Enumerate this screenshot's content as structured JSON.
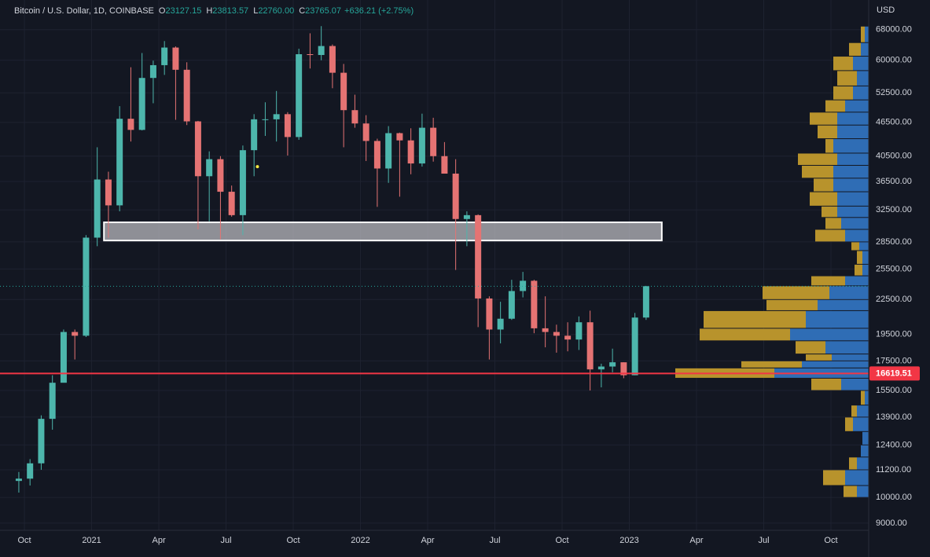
{
  "chart_data": {
    "type": "candlestick",
    "header": {
      "symbol": "Bitcoin / U.S. Dollar, 1D, COINBASE",
      "ohlc": [
        {
          "key": "O",
          "value": "23127.15"
        },
        {
          "key": "H",
          "value": "23813.57"
        },
        {
          "key": "L",
          "value": "22760.00"
        },
        {
          "key": "C",
          "value": "23765.07"
        }
      ],
      "change": "+636.21 (+2.75%)"
    },
    "currency": "USD",
    "up_color": "#4db6ac",
    "down_color": "#e57373",
    "x": [
      1.5,
      2.5,
      3.5,
      4.5,
      5.5,
      6.5,
      7.5,
      8.5,
      9.5,
      10.5,
      11.5,
      12.5,
      13.5,
      14.5,
      15.5,
      16.5,
      17.5,
      18.5,
      19.5,
      20.5,
      21.5,
      22.5,
      23.5,
      24.5,
      25.5,
      26.5,
      27.5,
      28.5,
      29.5,
      30.5,
      31.5,
      32.5,
      33.5,
      34.5,
      35.5,
      36.5,
      37.5,
      38.5,
      39.5,
      40.5,
      41.5,
      42.5,
      43.5,
      44.5,
      45.5,
      46.5,
      47.5,
      48.5,
      49.5,
      50.5,
      51.5,
      52.5,
      53.5,
      54.5,
      55.5,
      56.5,
      57.5
    ],
    "open": [
      10700,
      10800,
      11500,
      13800,
      16000,
      19700,
      19400,
      29000,
      36800,
      33100,
      47200,
      45100,
      55800,
      58800,
      63200,
      57700,
      46700,
      37300,
      40000,
      35000,
      31800,
      41500,
      47100,
      47100,
      48100,
      43800,
      61500,
      61300,
      63600,
      57000,
      48900,
      46300,
      43100,
      38500,
      44500,
      43200,
      39300,
      45500,
      40500,
      37700,
      31300,
      31800,
      22600,
      19900,
      20800,
      23300,
      24300,
      20000,
      19700,
      19400,
      19100,
      20500,
      16900,
      17100,
      17400,
      16500,
      20900
    ],
    "high": [
      11100,
      11700,
      14000,
      16500,
      19900,
      19900,
      29300,
      42000,
      38000,
      49700,
      58300,
      61800,
      59900,
      64900,
      63500,
      59500,
      46800,
      41300,
      40500,
      35900,
      42300,
      48100,
      50500,
      52900,
      48500,
      62900,
      67000,
      69000,
      64000,
      59100,
      52100,
      47900,
      43500,
      45800,
      44600,
      45400,
      48200,
      47400,
      42900,
      40000,
      32300,
      31900,
      22800,
      22300,
      24400,
      25200,
      24400,
      22800,
      20300,
      20500,
      21000,
      21500,
      17300,
      18400,
      17400,
      21300,
      23800
    ],
    "low": [
      10200,
      10500,
      11200,
      13200,
      16200,
      17600,
      19300,
      28000,
      29000,
      32300,
      43000,
      45000,
      50300,
      56500,
      47000,
      46000,
      30000,
      31000,
      28800,
      31600,
      29300,
      37300,
      44000,
      43000,
      40600,
      43300,
      58000,
      60000,
      53500,
      42000,
      45500,
      39700,
      32900,
      36300,
      34300,
      37600,
      38800,
      39600,
      37700,
      25400,
      28000,
      20100,
      17600,
      18800,
      20700,
      22700,
      19600,
      18500,
      18100,
      18200,
      18300,
      15500,
      15700,
      16700,
      16300,
      16500,
      20700
    ],
    "close": [
      10800,
      11500,
      13800,
      16000,
      19700,
      19400,
      29000,
      36800,
      33100,
      47200,
      45100,
      55800,
      58800,
      63200,
      57700,
      46700,
      37300,
      40000,
      35000,
      31800,
      41500,
      47100,
      47100,
      48100,
      43800,
      61500,
      61300,
      63600,
      57000,
      48900,
      46300,
      43100,
      38500,
      44500,
      43200,
      39300,
      45500,
      40500,
      37700,
      31300,
      31800,
      22600,
      19900,
      20800,
      23300,
      24300,
      20000,
      19700,
      19400,
      19100,
      20500,
      16900,
      17100,
      17400,
      16500,
      20900,
      23765.07
    ],
    "xlim": [
      -0.18,
      77.37
    ],
    "xticks": [
      {
        "value": 2,
        "label": "Oct"
      },
      {
        "value": 8,
        "label": "2021"
      },
      {
        "value": 14,
        "label": "Apr"
      },
      {
        "value": 20,
        "label": "Jul"
      },
      {
        "value": 26,
        "label": "Oct"
      },
      {
        "value": 32,
        "label": "2022"
      },
      {
        "value": 38,
        "label": "Apr"
      },
      {
        "value": 44,
        "label": "Jul"
      },
      {
        "value": 50,
        "label": "Oct"
      },
      {
        "value": 56,
        "label": "2023"
      },
      {
        "value": 62,
        "label": "Apr"
      },
      {
        "value": 68,
        "label": "Jul"
      },
      {
        "value": 74,
        "label": "Oct"
      }
    ],
    "ylim": [
      8740,
      76800
    ],
    "log_scale": true,
    "yticks": [
      {
        "value": 68000,
        "label": "68000.00"
      },
      {
        "value": 60000,
        "label": "60000.00"
      },
      {
        "value": 52500,
        "label": "52500.00"
      },
      {
        "value": 46500,
        "label": "46500.00"
      },
      {
        "value": 40500,
        "label": "40500.00"
      },
      {
        "value": 36500,
        "label": "36500.00"
      },
      {
        "value": 32500,
        "label": "32500.00"
      },
      {
        "value": 28500,
        "label": "28500.00"
      },
      {
        "value": 25500,
        "label": "25500.00"
      },
      {
        "value": 22500,
        "label": "22500.00"
      },
      {
        "value": 19500,
        "label": "19500.00"
      },
      {
        "value": 17500,
        "label": "17500.00"
      },
      {
        "value": 15500,
        "label": "15500.00"
      },
      {
        "value": 13900,
        "label": "13900.00"
      },
      {
        "value": 12400,
        "label": "12400.00"
      },
      {
        "value": 11200,
        "label": "11200.00"
      },
      {
        "value": 10000,
        "label": "10000.00"
      },
      {
        "value": 9000,
        "label": "9000.00"
      }
    ],
    "grid": true,
    "price_line": {
      "value": 16619.51,
      "color": "#f23645"
    },
    "last_price_line": 23765.07,
    "zone": {
      "x": [
        9.1,
        58.9
      ],
      "y": [
        28660,
        30880
      ]
    },
    "marker": {
      "x": 22.8,
      "y": 38800,
      "color": "#f5e942"
    },
    "volume_profile": {
      "bins": [
        10000,
        10500,
        11200,
        11800,
        12400,
        13100,
        13900,
        14600,
        15500,
        16300,
        17000,
        17500,
        18000,
        19000,
        20000,
        21500,
        22500,
        23800,
        24800,
        26000,
        27500,
        28500,
        30000,
        31500,
        33000,
        35000,
        37000,
        39000,
        41000,
        43500,
        46000,
        48500,
        51000,
        54000,
        57500,
        61000,
        64500,
        69000
      ],
      "up_color": "#2f6db5",
      "down_color": "#b8932c",
      "up": [
        15,
        30,
        15,
        10,
        8,
        20,
        15,
        5,
        35,
        120,
        85,
        47,
        55,
        100,
        80,
        65,
        50,
        30,
        8,
        8,
        12,
        30,
        35,
        40,
        40,
        45,
        45,
        40,
        45,
        40,
        40,
        30,
        20,
        15,
        20,
        10,
        5
      ],
      "down": [
        17,
        28,
        10,
        0,
        0,
        10,
        7,
        5,
        38,
        126,
        77,
        33,
        38,
        115,
        130,
        65,
        85,
        43,
        10,
        7,
        10,
        38,
        20,
        20,
        35,
        25,
        40,
        50,
        10,
        25,
        35,
        25,
        25,
        25,
        25,
        15,
        5
      ]
    }
  }
}
